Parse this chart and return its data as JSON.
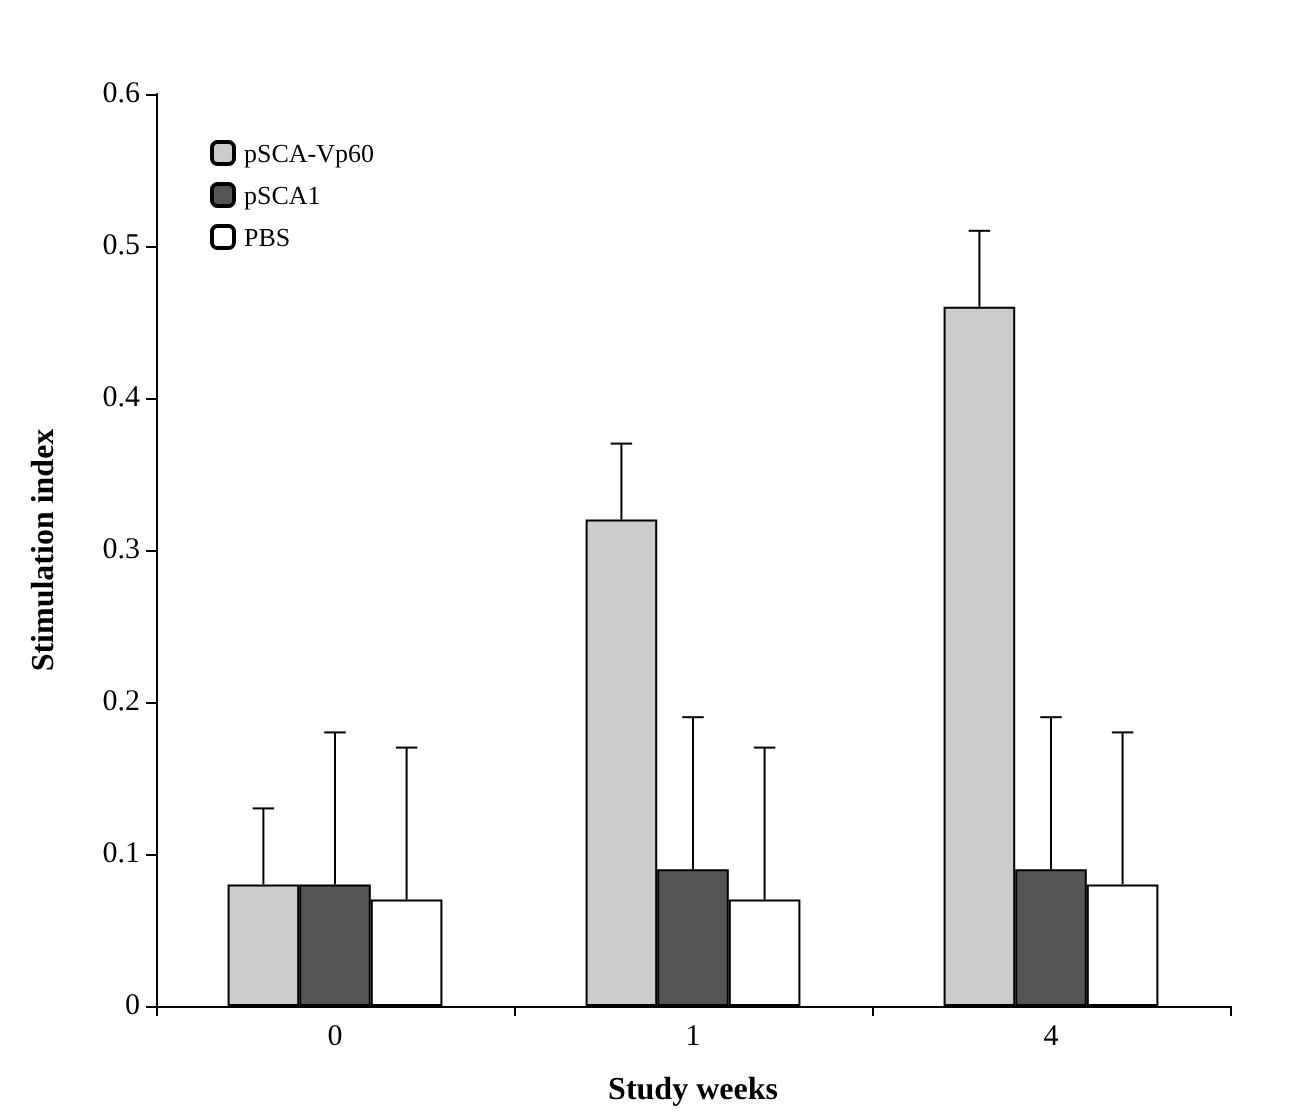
{
  "chart_data": {
    "type": "bar",
    "xlabel": "Study weeks",
    "ylabel": "Stimulation index",
    "categories": [
      "0",
      "1",
      "4"
    ],
    "series": [
      {
        "name": "pSCA-Vp60",
        "color": "#cccccc",
        "values": [
          0.08,
          0.32,
          0.46
        ],
        "errors": [
          [
            0.08,
            0.13
          ],
          [
            0.32,
            0.37
          ],
          [
            0.46,
            0.51
          ]
        ]
      },
      {
        "name": "pSCA1",
        "color": "#555555",
        "values": [
          0.08,
          0.09,
          0.09
        ],
        "errors": [
          [
            0.08,
            0.18
          ],
          [
            0.09,
            0.19
          ],
          [
            0.09,
            0.19
          ]
        ]
      },
      {
        "name": "PBS",
        "color": "#ffffff",
        "values": [
          0.07,
          0.07,
          0.08
        ],
        "errors": [
          [
            0.07,
            0.17
          ],
          [
            0.07,
            0.17
          ],
          [
            0.08,
            0.18
          ]
        ]
      }
    ],
    "ylim": [
      0,
      0.6
    ],
    "yticks": [
      0,
      0.1,
      0.2,
      0.3,
      0.4,
      0.5,
      0.6
    ],
    "grid": false,
    "legend": "top left"
  }
}
